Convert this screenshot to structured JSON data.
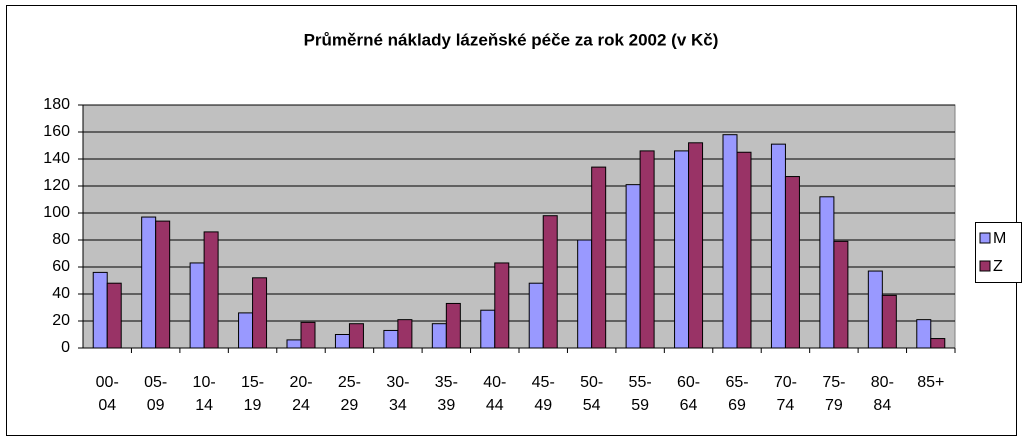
{
  "chart_data": {
    "type": "bar",
    "title": "Průměrné náklady lázeňské péče za rok 2002 (v Kč)",
    "categories": [
      "00-04",
      "05-09",
      "10-14",
      "15-19",
      "20-24",
      "25-29",
      "30-34",
      "35-39",
      "40-44",
      "45-49",
      "50-54",
      "55-59",
      "60-64",
      "65-69",
      "70-74",
      "75-79",
      "80-84",
      "85+"
    ],
    "series": [
      {
        "name": "M",
        "color": "#9999ff",
        "values": [
          56,
          97,
          63,
          26,
          6,
          10,
          13,
          18,
          28,
          48,
          80,
          121,
          146,
          158,
          151,
          112,
          57,
          21
        ]
      },
      {
        "name": "Z",
        "color": "#993366",
        "values": [
          48,
          94,
          86,
          52,
          19,
          18,
          21,
          33,
          63,
          98,
          134,
          146,
          152,
          145,
          127,
          79,
          39,
          7
        ]
      }
    ],
    "ylim": [
      0,
      180
    ],
    "yticks": [
      0,
      20,
      40,
      60,
      80,
      100,
      120,
      140,
      160,
      180
    ],
    "grid": true,
    "legend": "right"
  }
}
